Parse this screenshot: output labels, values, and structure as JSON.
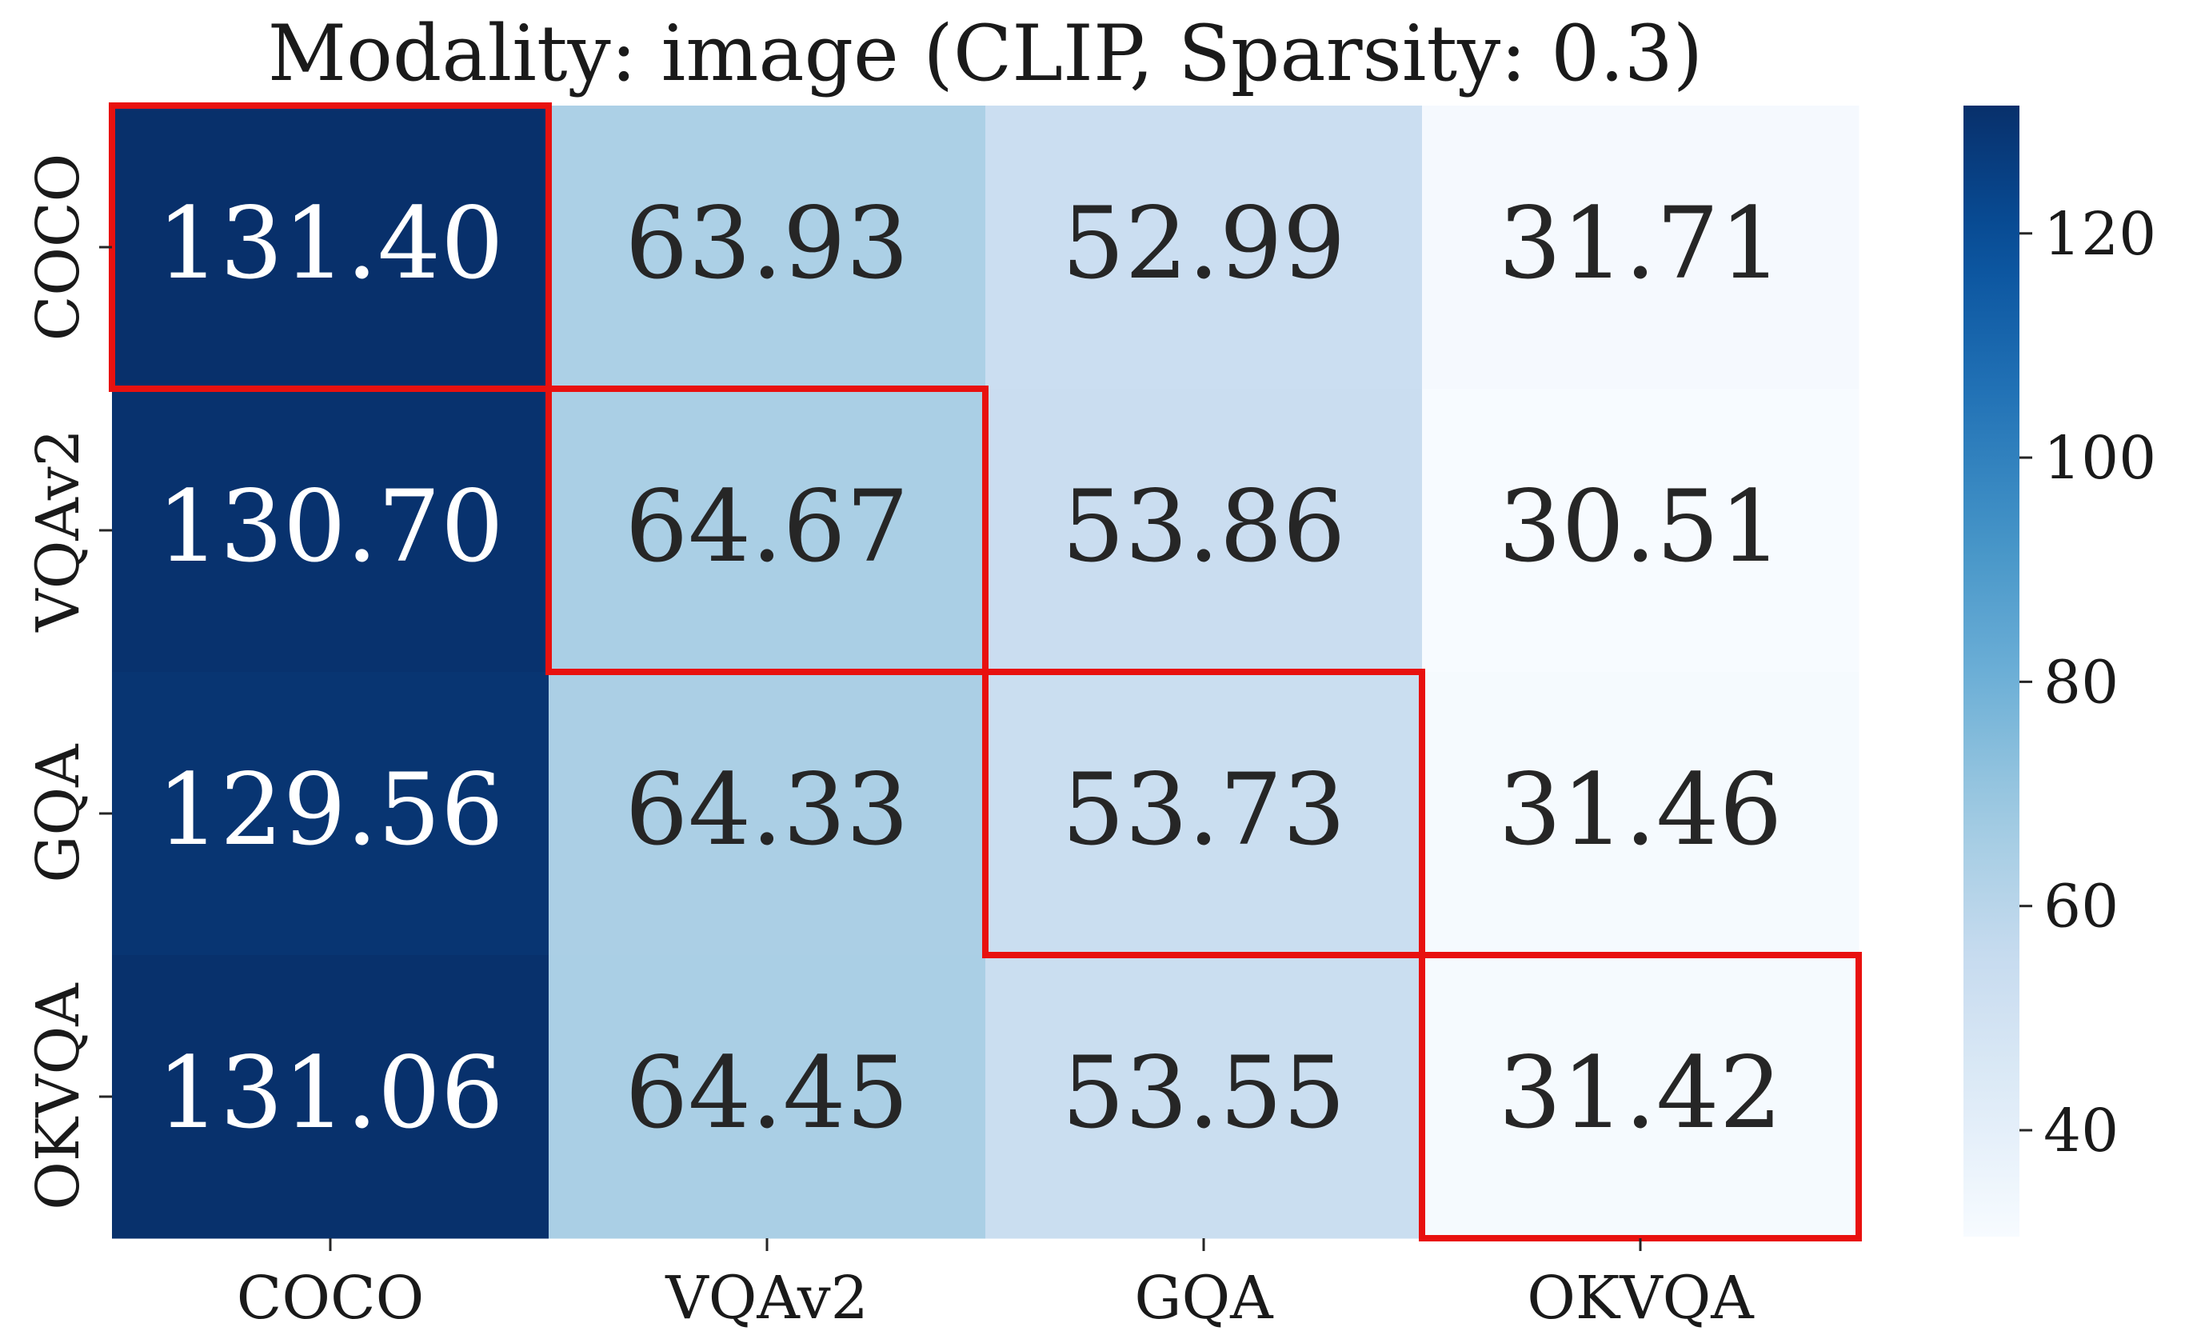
{
  "chart_data": {
    "type": "heatmap",
    "title": "Modality: image (CLIP, Sparsity: 0.3)",
    "x_categories": [
      "COCO",
      "VQAv2",
      "GQA",
      "OKVQA"
    ],
    "y_categories": [
      "COCO",
      "VQAv2",
      "GQA",
      "OKVQA"
    ],
    "values": [
      [
        131.4,
        63.93,
        52.99,
        31.71
      ],
      [
        130.7,
        64.67,
        53.86,
        30.51
      ],
      [
        129.56,
        64.33,
        53.73,
        31.46
      ],
      [
        131.06,
        64.45,
        53.55,
        31.42
      ]
    ],
    "value_labels": [
      [
        "131.40",
        "63.93",
        "52.99",
        "31.71"
      ],
      [
        "130.70",
        "64.67",
        "53.86",
        "30.51"
      ],
      [
        "129.56",
        "64.33",
        "53.73",
        "31.46"
      ],
      [
        "131.06",
        "64.45",
        "53.55",
        "31.42"
      ]
    ],
    "colormap": "Blues",
    "colorbar": {
      "range": [
        30.51,
        131.4
      ],
      "ticks": [
        40,
        60,
        80,
        100,
        120
      ],
      "tick_labels": [
        "40",
        "60",
        "80",
        "100",
        "120"
      ]
    },
    "highlighted_cells": [
      [
        0,
        0
      ],
      [
        1,
        1
      ],
      [
        2,
        2
      ],
      [
        3,
        3
      ]
    ],
    "highlight_color": "#e8110f",
    "xlabel": "",
    "ylabel": ""
  }
}
